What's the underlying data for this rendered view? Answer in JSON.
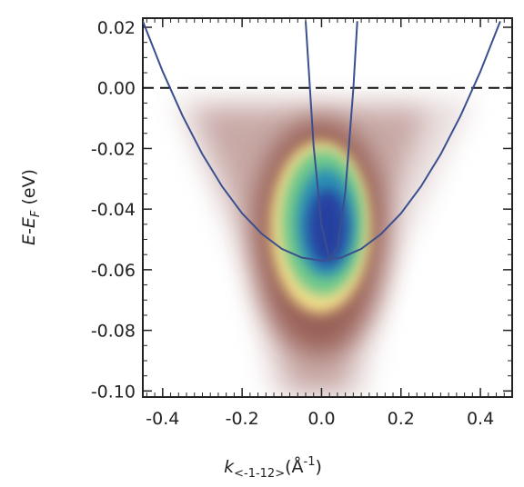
{
  "chart_data": {
    "type": "line",
    "xlabel": {
      "main": "k",
      "sub": "<-1-12>",
      "unit": "(Å",
      "sup": "-1",
      "close": ")"
    },
    "ylabel": {
      "main": "E-E",
      "sub": "F",
      "unit": " (eV)"
    },
    "xlim": [
      -0.45,
      0.48
    ],
    "ylim": [
      -0.102,
      0.023
    ],
    "xticks": [
      -0.4,
      -0.2,
      {
        "value": 0,
        "label": "0.0"
      },
      0.2,
      0.4
    ],
    "yticks": [
      0.02,
      {
        "value": 0,
        "label": "0.00"
      },
      -0.02,
      -0.04,
      -0.06,
      -0.08,
      {
        "value": -0.1,
        "label": "-0.10"
      }
    ],
    "minor_ticks": {
      "x": 0.02,
      "y": 0.005
    },
    "hline": 0,
    "series": [
      {
        "color": "#3b4f8f",
        "x": [
          -0.45,
          -0.4,
          -0.35,
          -0.3,
          -0.25,
          -0.2,
          -0.15,
          -0.1,
          -0.05,
          0,
          0.05,
          0.1,
          0.15,
          0.2,
          0.25,
          0.3,
          0.35,
          0.4,
          0.45
        ],
        "values": [
          0.022,
          0.0054,
          -0.0092,
          -0.0219,
          -0.0326,
          -0.0414,
          -0.0482,
          -0.0531,
          -0.056,
          -0.057,
          -0.056,
          -0.0531,
          -0.0482,
          -0.0414,
          -0.0326,
          -0.0219,
          -0.0092,
          0.0054,
          0.022
        ]
      },
      {
        "color": "#3b4f8f",
        "x": [
          -0.04,
          -0.02,
          0,
          0.02,
          0.04,
          0.06,
          0.08,
          0.09
        ],
        "values": [
          0.022,
          -0.0191,
          -0.0453,
          -0.0565,
          -0.0528,
          -0.0341,
          -0.0004,
          0.022
        ]
      }
    ]
  }
}
